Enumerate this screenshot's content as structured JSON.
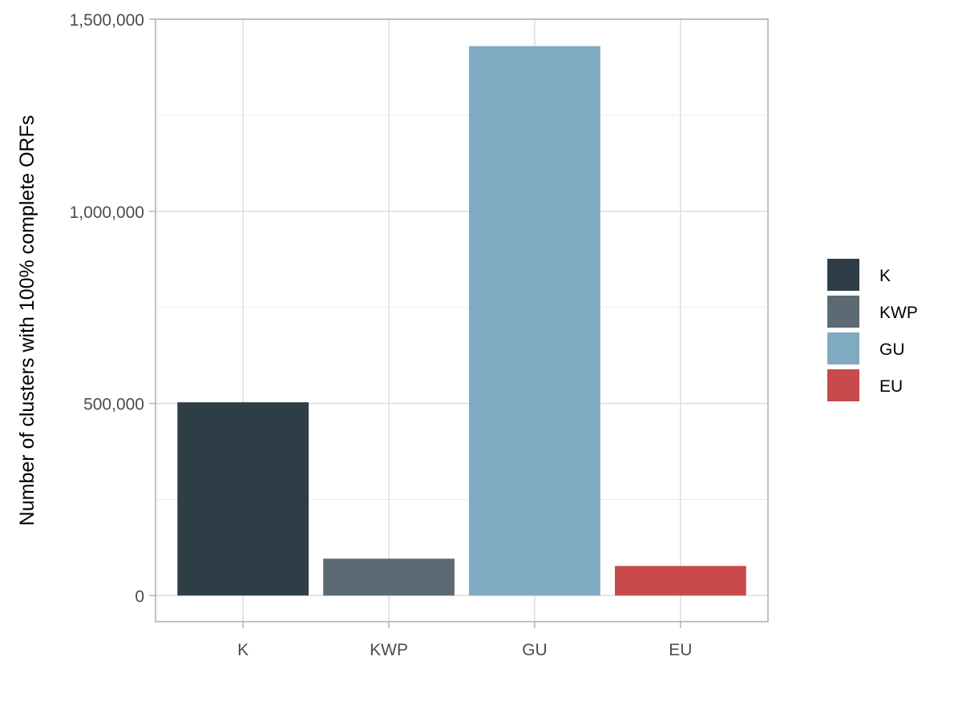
{
  "chart_data": {
    "type": "bar",
    "title": "",
    "xlabel": "",
    "ylabel": "Number of clusters with 100% complete ORFs",
    "categories": [
      "K",
      "KWP",
      "GU",
      "EU"
    ],
    "values": [
      503000,
      96000,
      1430000,
      77000
    ],
    "colors": [
      "#2F3E46",
      "#5C6B73",
      "#7FAAC1",
      "#C94A4A"
    ],
    "ylim": [
      -68000,
      1500000
    ],
    "yticks": [
      0,
      500000,
      1000000,
      1500000
    ],
    "ytick_labels": [
      "0",
      "500,000",
      "1,000,000",
      "1,500,000"
    ],
    "grid": true,
    "legend": {
      "position": "right",
      "entries": [
        "K",
        "KWP",
        "GU",
        "EU"
      ]
    }
  }
}
